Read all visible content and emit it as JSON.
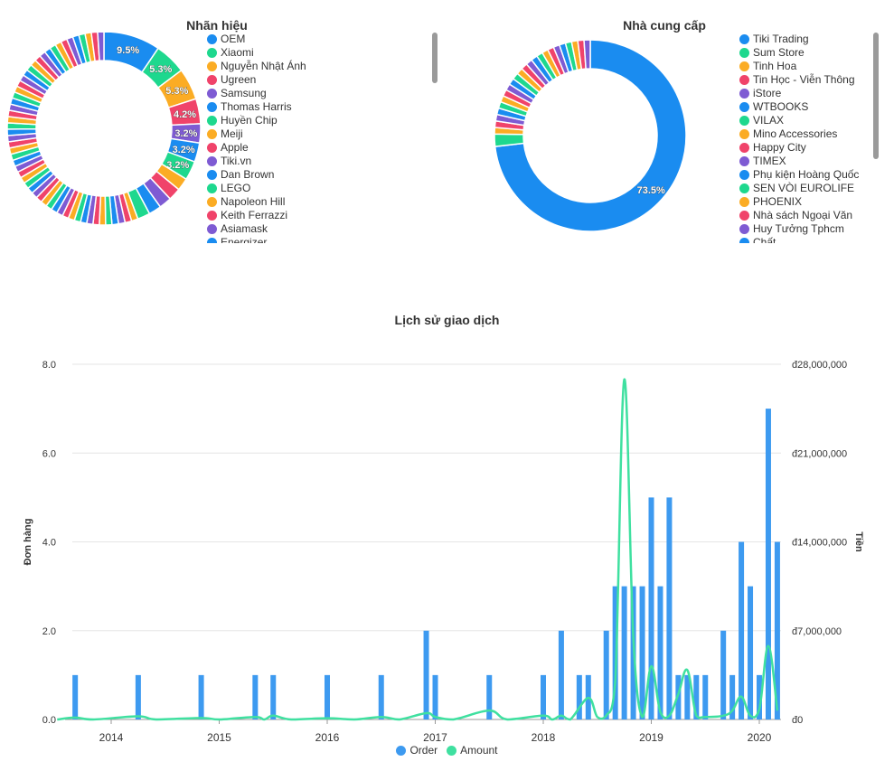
{
  "colors": {
    "palette": [
      "#1a8cf0",
      "#1ed88e",
      "#fbac24",
      "#f0436a",
      "#7e5bd3"
    ],
    "order_bar": "#3d9af0",
    "amount_line": "#3fe0a0",
    "scrollbar": "#9a9a9a",
    "grid": "#e6e6e6"
  },
  "brand_chart": {
    "title": "Nhãn hiệu",
    "legend": [
      "OEM",
      "Xiaomi",
      "Nguyễn Nhật Ánh",
      "Ugreen",
      "Samsung",
      "Thomas Harris",
      "Huyền Chip",
      "Meiji",
      "Apple",
      "Tiki.vn",
      "Dan Brown",
      "LEGO",
      "Napoleon Hill",
      "Keith Ferrazzi",
      "Asiamask",
      "Energizer"
    ]
  },
  "supplier_chart": {
    "title": "Nhà cung cấp",
    "legend": [
      "Tiki Trading",
      "Sum Store",
      "Tinh Hoa",
      "Tin Học - Viễn Thông",
      "iStore",
      "WTBOOKS",
      "VILAX",
      "Mino Accessories",
      "Happy City",
      "TIMEX",
      "Phụ kiện Hoàng Quốc",
      "SEN VÒI EUROLIFE",
      "PHOENIX",
      "Nhà sách Ngoại Văn",
      "Huy Tưởng Tphcm",
      "Chất"
    ]
  },
  "history_chart": {
    "title": "Lịch sử giao dịch",
    "y_left_label": "Đơn hàng",
    "y_right_label": "Tiền",
    "y_left_ticks": [
      "0.0",
      "2.0",
      "4.0",
      "6.0",
      "8.0"
    ],
    "y_right_ticks": [
      "đ0",
      "đ7,000,000",
      "đ14,000,000",
      "đ21,000,000",
      "đ28,000,000"
    ],
    "x_ticks": [
      "2014",
      "2015",
      "2016",
      "2017",
      "2018",
      "2019",
      "2020"
    ],
    "legend": [
      "Order",
      "Amount"
    ]
  },
  "chart_data": [
    {
      "type": "pie",
      "title": "Nhãn hiệu",
      "donut": true,
      "slices": [
        {
          "label": "OEM",
          "value": 9.5,
          "display": "9.5%"
        },
        {
          "label": "Xiaomi",
          "value": 5.3,
          "display": "5.3%"
        },
        {
          "label": "Nguyễn Nhật Ánh",
          "value": 5.3,
          "display": "5.3%"
        },
        {
          "label": "Ugreen",
          "value": 4.2,
          "display": "4.2%"
        },
        {
          "label": "Samsung",
          "value": 3.2,
          "display": "3.2%"
        },
        {
          "label": "Thomas Harris",
          "value": 3.2,
          "display": "3.2%"
        },
        {
          "label": "Huyền Chip",
          "value": 3.2,
          "display": "3.2%"
        },
        {
          "label": "Meiji",
          "value": 2.1
        },
        {
          "label": "Apple",
          "value": 2.1
        },
        {
          "label": "Tiki.vn",
          "value": 2.1
        },
        {
          "label": "Dan Brown",
          "value": 2.1
        },
        {
          "label": "LEGO",
          "value": 2.1
        },
        {
          "label": "Napoleon Hill",
          "value": 1.1
        },
        {
          "label": "Keith Ferrazzi",
          "value": 1.1
        },
        {
          "label": "Asiamask",
          "value": 1.1
        },
        {
          "label": "Energizer",
          "value": 1.1
        }
      ],
      "minor_slices": {
        "count": 49,
        "value_each": 1.05
      }
    },
    {
      "type": "pie",
      "title": "Nhà cung cấp",
      "donut": true,
      "slices": [
        {
          "label": "Tiki Trading",
          "value": 73.5,
          "display": "73.5%"
        },
        {
          "label": "Sum Store",
          "value": 2.1
        },
        {
          "label": "Tinh Hoa",
          "value": 1.1
        },
        {
          "label": "Tin Học - Viễn Thông",
          "value": 1.1
        },
        {
          "label": "iStore",
          "value": 1.1
        },
        {
          "label": "WTBOOKS",
          "value": 1.1
        },
        {
          "label": "VILAX",
          "value": 1.1
        },
        {
          "label": "Mino Accessories",
          "value": 1.1
        },
        {
          "label": "Happy City",
          "value": 1.1
        },
        {
          "label": "TIMEX",
          "value": 1.1
        },
        {
          "label": "Phụ kiện Hoàng Quốc",
          "value": 1.1
        },
        {
          "label": "SEN VÒI EUROLIFE",
          "value": 1.1
        },
        {
          "label": "PHOENIX",
          "value": 1.1
        },
        {
          "label": "Nhà sách Ngoại Văn",
          "value": 1.1
        },
        {
          "label": "Huy Tưởng Tphcm",
          "value": 1.1
        },
        {
          "label": "Chất",
          "value": 1.1
        }
      ],
      "minor_slices": {
        "count": 9,
        "value_each": 1.05
      }
    },
    {
      "type": "bar",
      "title": "Lịch sử giao dịch",
      "xlabel": "",
      "ylabel": "Đơn hàng",
      "y2label": "Tiền",
      "ylim": [
        0,
        8
      ],
      "y2lim": [
        0,
        28000000
      ],
      "xlim": [
        "2013-07",
        "2020-03"
      ],
      "series": [
        {
          "name": "Order",
          "axis": "left",
          "type": "bar",
          "points": [
            [
              "2013-09",
              1
            ],
            [
              "2014-04",
              1
            ],
            [
              "2014-11",
              1
            ],
            [
              "2015-05",
              1
            ],
            [
              "2015-07",
              1
            ],
            [
              "2016-01",
              1
            ],
            [
              "2016-07",
              1
            ],
            [
              "2016-12",
              2
            ],
            [
              "2017-01",
              1
            ],
            [
              "2017-07",
              1
            ],
            [
              "2018-01",
              1
            ],
            [
              "2018-03",
              2
            ],
            [
              "2018-05",
              1
            ],
            [
              "2018-06",
              1
            ],
            [
              "2018-08",
              2
            ],
            [
              "2018-09",
              3
            ],
            [
              "2018-10",
              3
            ],
            [
              "2018-11",
              3
            ],
            [
              "2018-12",
              3
            ],
            [
              "2019-01",
              5
            ],
            [
              "2019-02",
              3
            ],
            [
              "2019-03",
              5
            ],
            [
              "2019-04",
              1
            ],
            [
              "2019-05",
              1
            ],
            [
              "2019-06",
              1
            ],
            [
              "2019-07",
              1
            ],
            [
              "2019-09",
              2
            ],
            [
              "2019-10",
              1
            ],
            [
              "2019-11",
              4
            ],
            [
              "2019-12",
              3
            ],
            [
              "2020-01",
              1
            ],
            [
              "2020-02",
              7
            ],
            [
              "2020-03",
              4
            ]
          ]
        },
        {
          "name": "Amount",
          "axis": "right",
          "type": "line",
          "points": [
            [
              "2013-07",
              0
            ],
            [
              "2013-09",
              150000
            ],
            [
              "2013-11",
              0
            ],
            [
              "2014-04",
              250000
            ],
            [
              "2014-06",
              0
            ],
            [
              "2014-11",
              120000
            ],
            [
              "2015-01",
              0
            ],
            [
              "2015-05",
              200000
            ],
            [
              "2015-06",
              0
            ],
            [
              "2015-07",
              300000
            ],
            [
              "2015-09",
              0
            ],
            [
              "2016-01",
              100000
            ],
            [
              "2016-04",
              0
            ],
            [
              "2016-07",
              200000
            ],
            [
              "2016-09",
              0
            ],
            [
              "2016-12",
              500000
            ],
            [
              "2017-01",
              200000
            ],
            [
              "2017-03",
              0
            ],
            [
              "2017-07",
              700000
            ],
            [
              "2017-09",
              0
            ],
            [
              "2018-01",
              300000
            ],
            [
              "2018-02",
              0
            ],
            [
              "2018-03",
              300000
            ],
            [
              "2018-04",
              0
            ],
            [
              "2018-06",
              1700000
            ],
            [
              "2018-07",
              200000
            ],
            [
              "2018-08",
              300000
            ],
            [
              "2018-09",
              3000000
            ],
            [
              "2018-10",
              26800000
            ],
            [
              "2018-11",
              6500000
            ],
            [
              "2018-12",
              200000
            ],
            [
              "2019-01",
              4200000
            ],
            [
              "2019-02",
              600000
            ],
            [
              "2019-03",
              300000
            ],
            [
              "2019-04",
              2000000
            ],
            [
              "2019-05",
              3900000
            ],
            [
              "2019-06",
              300000
            ],
            [
              "2019-07",
              200000
            ],
            [
              "2019-09",
              300000
            ],
            [
              "2019-10",
              700000
            ],
            [
              "2019-11",
              1800000
            ],
            [
              "2019-12",
              300000
            ],
            [
              "2020-01",
              800000
            ],
            [
              "2020-02",
              5800000
            ],
            [
              "2020-03",
              700000
            ]
          ]
        }
      ]
    }
  ]
}
